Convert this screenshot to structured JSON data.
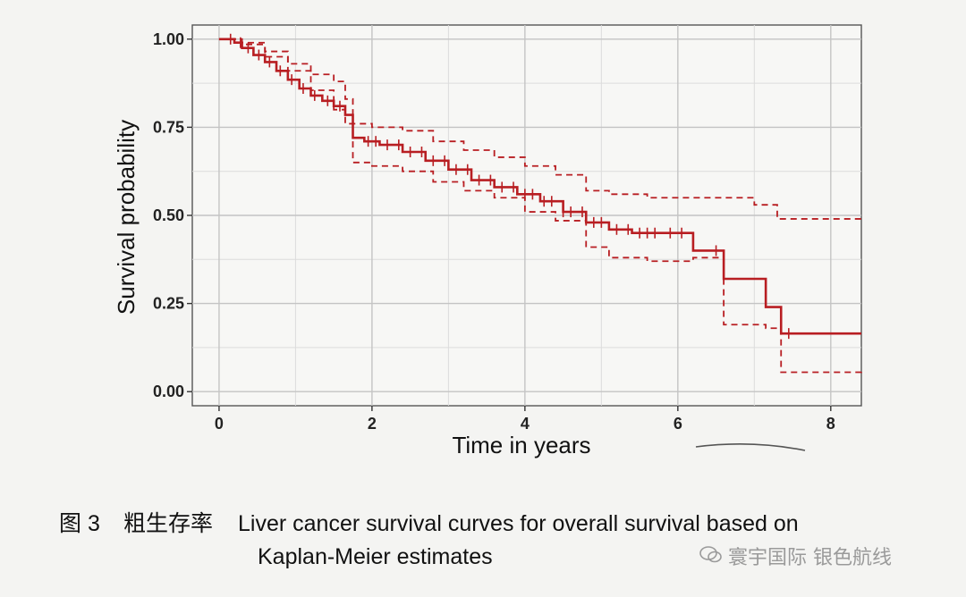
{
  "chart_data": {
    "type": "line",
    "title": "",
    "xlabel": "Time in years",
    "ylabel": "Survival probability",
    "xlim": [
      -0.35,
      8.4
    ],
    "ylim": [
      -0.04,
      1.04
    ],
    "x_ticks": [
      "0",
      "2",
      "4",
      "6",
      "8"
    ],
    "x_tick_values": [
      0,
      2,
      4,
      6,
      8
    ],
    "y_ticks": [
      "0.00",
      "0.25",
      "0.50",
      "0.75",
      "1.00"
    ],
    "y_tick_values": [
      0,
      0.25,
      0.5,
      0.75,
      1.0
    ],
    "grid": true,
    "legend": "none",
    "series": [
      {
        "role": "estimate",
        "color": "#b81e22",
        "style": "solid",
        "x": [
          0,
          0.2,
          0.3,
          0.45,
          0.6,
          0.75,
          0.9,
          1.05,
          1.2,
          1.35,
          1.5,
          1.65,
          1.75,
          1.9,
          2.1,
          2.4,
          2.7,
          3.0,
          3.3,
          3.6,
          3.9,
          4.2,
          4.5,
          4.8,
          5.1,
          5.4,
          5.8,
          6.2,
          6.6,
          7.15,
          7.35,
          8.4
        ],
        "y": [
          1.0,
          0.99,
          0.975,
          0.955,
          0.935,
          0.91,
          0.885,
          0.86,
          0.84,
          0.825,
          0.81,
          0.785,
          0.72,
          0.71,
          0.7,
          0.68,
          0.655,
          0.63,
          0.6,
          0.58,
          0.56,
          0.54,
          0.51,
          0.48,
          0.46,
          0.45,
          0.45,
          0.4,
          0.32,
          0.24,
          0.165,
          0.165
        ]
      },
      {
        "role": "upper_ci",
        "color": "#b81e22",
        "style": "dashed",
        "x": [
          0,
          0.3,
          0.6,
          0.9,
          1.2,
          1.5,
          1.65,
          1.75,
          2.0,
          2.4,
          2.8,
          3.2,
          3.6,
          4.0,
          4.4,
          4.8,
          5.1,
          5.6,
          6.2,
          6.6,
          7.0,
          7.3,
          8.4
        ],
        "y": [
          1.0,
          0.99,
          0.965,
          0.93,
          0.9,
          0.88,
          0.83,
          0.76,
          0.75,
          0.74,
          0.71,
          0.685,
          0.665,
          0.64,
          0.615,
          0.57,
          0.56,
          0.55,
          0.55,
          0.55,
          0.53,
          0.49,
          0.49
        ]
      },
      {
        "role": "lower_ci",
        "color": "#b81e22",
        "style": "dashed",
        "x": [
          0,
          0.3,
          0.6,
          0.9,
          1.2,
          1.5,
          1.65,
          1.75,
          2.0,
          2.4,
          2.8,
          3.2,
          3.6,
          4.0,
          4.4,
          4.8,
          5.1,
          5.6,
          6.2,
          6.6,
          7.15,
          7.35,
          8.4
        ],
        "y": [
          1.0,
          0.985,
          0.95,
          0.91,
          0.855,
          0.8,
          0.76,
          0.65,
          0.64,
          0.625,
          0.595,
          0.57,
          0.55,
          0.51,
          0.485,
          0.41,
          0.38,
          0.37,
          0.38,
          0.19,
          0.18,
          0.055,
          0.06
        ]
      }
    ],
    "censor_marks_x": [
      0.15,
      0.28,
      0.38,
      0.52,
      0.66,
      0.8,
      0.95,
      1.1,
      1.25,
      1.42,
      1.58,
      1.95,
      2.05,
      2.2,
      2.35,
      2.5,
      2.65,
      2.8,
      2.95,
      3.1,
      3.25,
      3.4,
      3.55,
      3.7,
      3.85,
      4.0,
      4.1,
      4.25,
      4.35,
      4.5,
      4.6,
      4.75,
      4.9,
      5.0,
      5.2,
      5.35,
      5.5,
      5.6,
      5.7,
      5.9,
      6.05,
      6.5,
      7.45
    ]
  },
  "caption": {
    "figure_label": "图 3",
    "title_cn": "粗生存率",
    "title_en_line1": "Liver cancer survival curves for overall survival based on",
    "title_en_line2": "Kaplan-Meier estimates"
  },
  "watermark": {
    "text": "寰宇国际 银色航线",
    "icon": "wechat-icon"
  }
}
